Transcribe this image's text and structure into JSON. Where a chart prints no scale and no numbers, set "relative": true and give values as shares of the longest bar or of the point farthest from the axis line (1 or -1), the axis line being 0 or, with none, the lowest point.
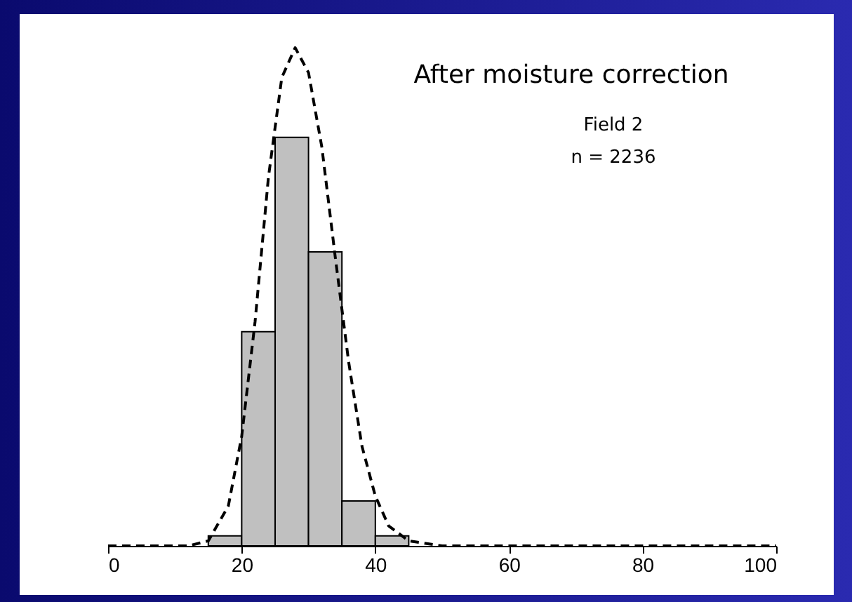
{
  "chart_data": {
    "type": "histogram",
    "relative": true,
    "annotations": [
      "After moisture correction",
      "Field 2",
      "n = 2236"
    ],
    "bins": [
      15,
      20,
      25,
      30,
      35,
      40,
      45
    ],
    "values": [
      0.02,
      0.43,
      0.82,
      0.59,
      0.09,
      0.02
    ],
    "color": "#c0c0c0",
    "series": [
      {
        "type": "line",
        "color": "#000000",
        "line_style": "dashed",
        "x": [
          0,
          12,
          15,
          18,
          20,
          22,
          24,
          26,
          28,
          30,
          32,
          34,
          36,
          38,
          40,
          42,
          45,
          50,
          100
        ],
        "values": [
          0,
          0,
          0.01,
          0.08,
          0.22,
          0.45,
          0.74,
          0.94,
          1,
          0.95,
          0.8,
          0.58,
          0.37,
          0.2,
          0.1,
          0.04,
          0.01,
          0,
          0
        ]
      }
    ],
    "xlim": [
      0,
      100
    ],
    "xticks": [
      0,
      20,
      40,
      60,
      80,
      100
    ]
  }
}
